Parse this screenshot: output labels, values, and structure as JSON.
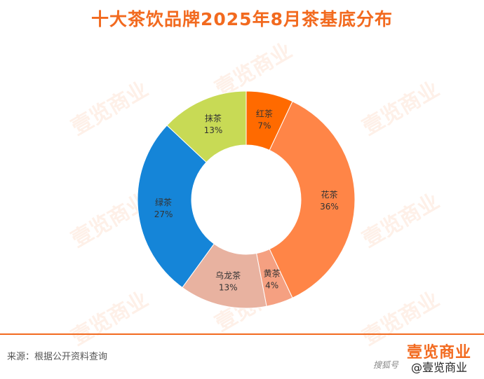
{
  "title": "十大茶饮品牌2025年8月茶基底分布",
  "source": "来源：根据公开资料查询",
  "logo": "壹览商业",
  "watermark_text": "壹览商业",
  "watermark_credit": "搜狐号",
  "handle": "@壹览商业",
  "colors": {
    "accent": "#F26A1F"
  },
  "chart_data": {
    "type": "pie",
    "donut": true,
    "title": "十大茶饮品牌2025年8月茶基底分布",
    "slices": [
      {
        "label": "红茶",
        "value": 7,
        "value_label": "7%",
        "color": "#FF6A00"
      },
      {
        "label": "花茶",
        "value": 36,
        "value_label": "36%",
        "color": "#FF8547"
      },
      {
        "label": "黄茶",
        "value": 4,
        "value_label": "4%",
        "color": "#F5A081"
      },
      {
        "label": "乌龙茶",
        "value": 13,
        "value_label": "13%",
        "color": "#E8B2A0"
      },
      {
        "label": "绿茶",
        "value": 27,
        "value_label": "27%",
        "color": "#1585D8"
      },
      {
        "label": "抹茶",
        "value": 13,
        "value_label": "13%",
        "color": "#C8DA55"
      }
    ]
  }
}
